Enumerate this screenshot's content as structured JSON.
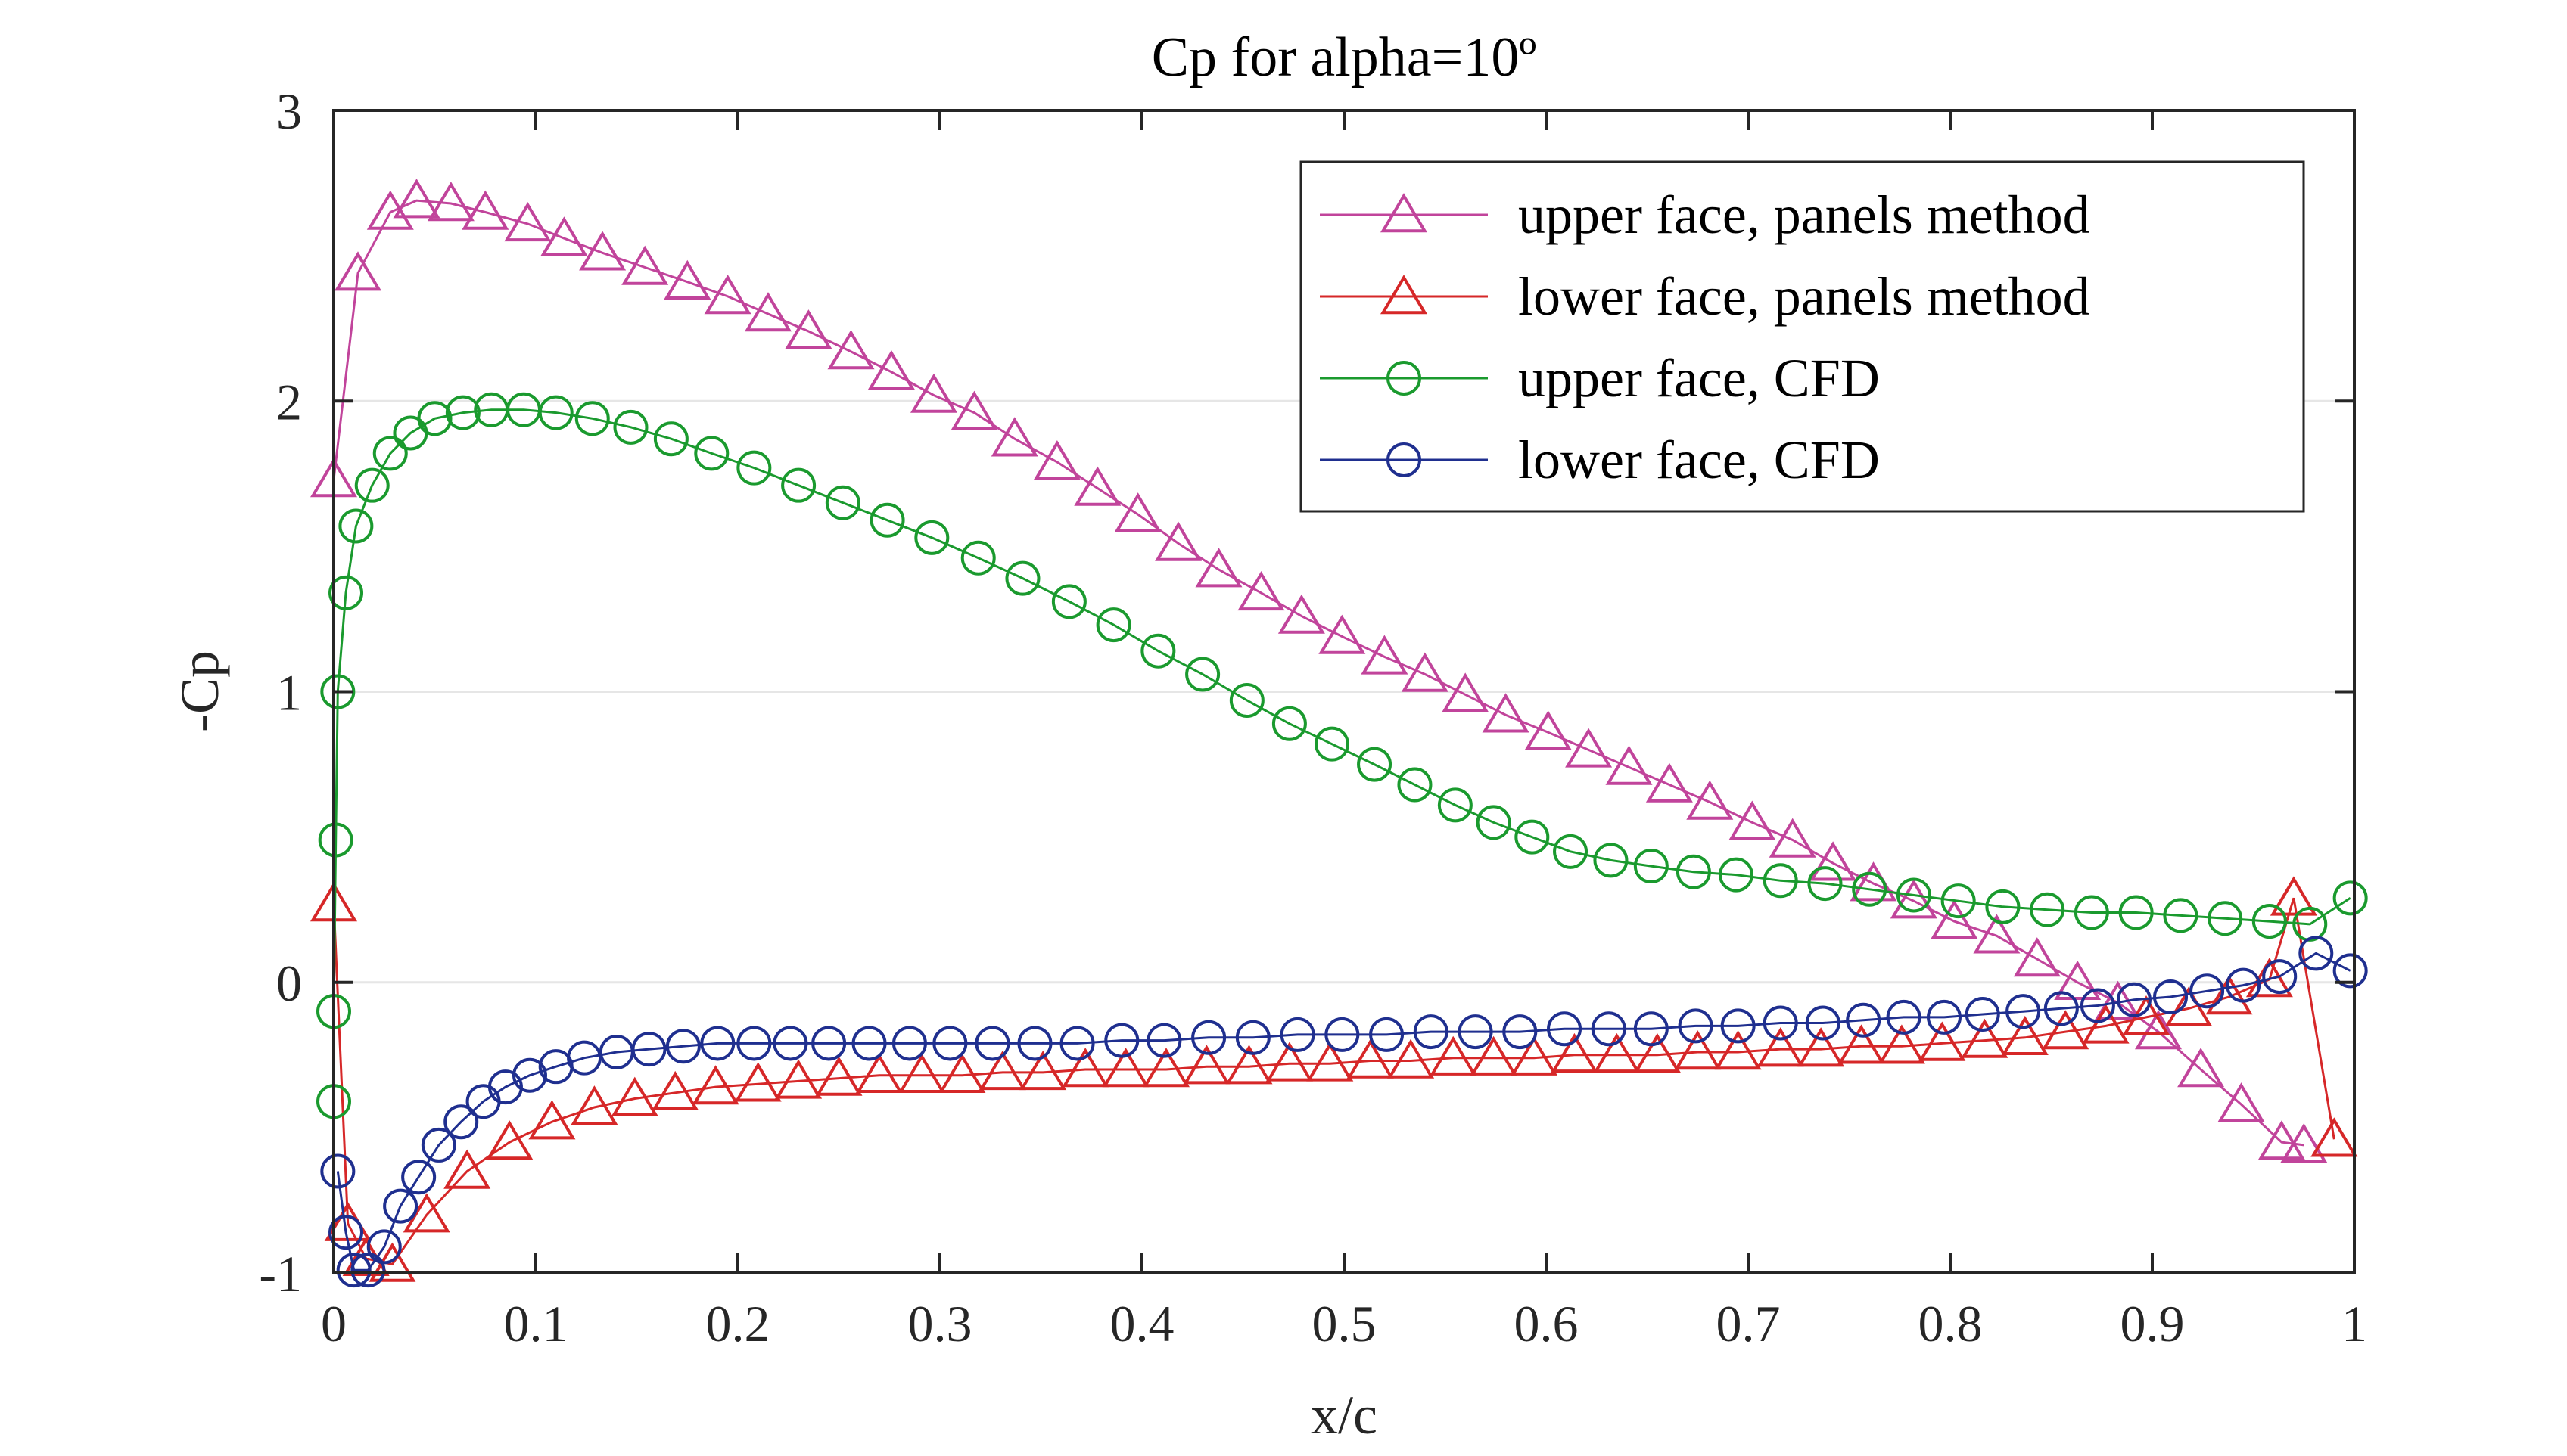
{
  "chart_data": {
    "type": "line",
    "title": "Cp for alpha=10º",
    "xlabel": "x/c",
    "ylabel": "-Cp",
    "xlim": [
      0,
      1
    ],
    "ylim": [
      -1,
      3
    ],
    "xticks": [
      "0",
      "0.1",
      "0.2",
      "0.3",
      "0.4",
      "0.5",
      "0.6",
      "0.7",
      "0.8",
      "0.9",
      "1"
    ],
    "yticks": [
      "-1",
      "0",
      "1",
      "2",
      "3"
    ],
    "grid": "horizontal",
    "legend_position": "top-right",
    "series": [
      {
        "name": "upper face, panels method",
        "color": "#C1449B",
        "marker": "triangle",
        "x": [
          0.0,
          0.012,
          0.028,
          0.041,
          0.058,
          0.075,
          0.096,
          0.114,
          0.133,
          0.154,
          0.175,
          0.195,
          0.215,
          0.235,
          0.256,
          0.276,
          0.297,
          0.317,
          0.337,
          0.358,
          0.378,
          0.398,
          0.418,
          0.438,
          0.459,
          0.479,
          0.499,
          0.52,
          0.54,
          0.56,
          0.58,
          0.601,
          0.621,
          0.641,
          0.661,
          0.681,
          0.702,
          0.722,
          0.742,
          0.762,
          0.782,
          0.802,
          0.823,
          0.843,
          0.863,
          0.883,
          0.903,
          0.924,
          0.944,
          0.964,
          0.975
        ],
        "y": [
          1.73,
          2.44,
          2.65,
          2.69,
          2.68,
          2.65,
          2.61,
          2.56,
          2.51,
          2.46,
          2.41,
          2.36,
          2.3,
          2.24,
          2.17,
          2.1,
          2.02,
          1.96,
          1.87,
          1.79,
          1.7,
          1.61,
          1.51,
          1.42,
          1.34,
          1.26,
          1.19,
          1.12,
          1.06,
          0.99,
          0.92,
          0.86,
          0.8,
          0.74,
          0.68,
          0.62,
          0.55,
          0.49,
          0.41,
          0.34,
          0.28,
          0.21,
          0.16,
          0.08,
          0.0,
          -0.07,
          -0.17,
          -0.3,
          -0.42,
          -0.55,
          -0.56
        ]
      },
      {
        "name": "lower face, panels method",
        "color": "#D62728",
        "marker": "triangle",
        "x": [
          0.0,
          0.007,
          0.016,
          0.029,
          0.046,
          0.066,
          0.087,
          0.108,
          0.129,
          0.149,
          0.169,
          0.189,
          0.21,
          0.23,
          0.25,
          0.27,
          0.291,
          0.311,
          0.331,
          0.351,
          0.372,
          0.392,
          0.412,
          0.432,
          0.453,
          0.473,
          0.493,
          0.513,
          0.533,
          0.554,
          0.574,
          0.594,
          0.614,
          0.635,
          0.655,
          0.675,
          0.695,
          0.716,
          0.736,
          0.756,
          0.776,
          0.796,
          0.817,
          0.837,
          0.857,
          0.877,
          0.897,
          0.918,
          0.938,
          0.958,
          0.97,
          0.99
        ],
        "y": [
          0.27,
          -0.83,
          -0.95,
          -0.97,
          -0.8,
          -0.65,
          -0.55,
          -0.48,
          -0.43,
          -0.4,
          -0.38,
          -0.36,
          -0.35,
          -0.34,
          -0.33,
          -0.32,
          -0.32,
          -0.32,
          -0.31,
          -0.31,
          -0.3,
          -0.3,
          -0.3,
          -0.29,
          -0.29,
          -0.28,
          -0.28,
          -0.27,
          -0.27,
          -0.26,
          -0.26,
          -0.26,
          -0.25,
          -0.25,
          -0.25,
          -0.24,
          -0.24,
          -0.23,
          -0.23,
          -0.22,
          -0.22,
          -0.21,
          -0.2,
          -0.19,
          -0.17,
          -0.15,
          -0.12,
          -0.09,
          -0.05,
          0.01,
          0.29,
          -0.54
        ]
      },
      {
        "name": "upper face, CFD",
        "color": "#1A9A2E",
        "marker": "circle",
        "x": [
          0.0,
          0.0,
          0.001,
          0.002,
          0.006,
          0.011,
          0.019,
          0.028,
          0.038,
          0.05,
          0.064,
          0.078,
          0.094,
          0.11,
          0.128,
          0.147,
          0.167,
          0.187,
          0.208,
          0.23,
          0.252,
          0.274,
          0.296,
          0.319,
          0.341,
          0.364,
          0.386,
          0.408,
          0.43,
          0.452,
          0.473,
          0.494,
          0.515,
          0.535,
          0.555,
          0.574,
          0.593,
          0.612,
          0.632,
          0.652,
          0.673,
          0.694,
          0.716,
          0.738,
          0.76,
          0.782,
          0.804,
          0.826,
          0.848,
          0.87,
          0.892,
          0.914,
          0.936,
          0.958,
          0.978,
          0.998
        ],
        "y": [
          -0.41,
          -0.1,
          0.49,
          1.0,
          1.34,
          1.57,
          1.71,
          1.82,
          1.89,
          1.94,
          1.96,
          1.97,
          1.97,
          1.96,
          1.94,
          1.91,
          1.87,
          1.82,
          1.77,
          1.71,
          1.65,
          1.59,
          1.53,
          1.46,
          1.39,
          1.31,
          1.23,
          1.14,
          1.06,
          0.97,
          0.89,
          0.82,
          0.75,
          0.68,
          0.61,
          0.55,
          0.5,
          0.45,
          0.42,
          0.4,
          0.38,
          0.37,
          0.35,
          0.34,
          0.32,
          0.3,
          0.28,
          0.26,
          0.25,
          0.24,
          0.24,
          0.23,
          0.22,
          0.21,
          0.2,
          0.29
        ]
      },
      {
        "name": "lower face, CFD",
        "color": "#1F2F8F",
        "marker": "circle",
        "x": [
          0.002,
          0.006,
          0.01,
          0.017,
          0.025,
          0.033,
          0.042,
          0.052,
          0.063,
          0.074,
          0.085,
          0.097,
          0.11,
          0.124,
          0.14,
          0.156,
          0.173,
          0.19,
          0.208,
          0.226,
          0.245,
          0.265,
          0.285,
          0.305,
          0.326,
          0.347,
          0.368,
          0.39,
          0.411,
          0.433,
          0.455,
          0.477,
          0.499,
          0.521,
          0.543,
          0.565,
          0.587,
          0.609,
          0.631,
          0.652,
          0.674,
          0.695,
          0.716,
          0.737,
          0.757,
          0.777,
          0.797,
          0.816,
          0.836,
          0.855,
          0.873,
          0.891,
          0.909,
          0.927,
          0.945,
          0.963,
          0.981,
          0.998
        ],
        "y": [
          -0.65,
          -0.86,
          -0.99,
          -0.99,
          -0.91,
          -0.77,
          -0.67,
          -0.56,
          -0.48,
          -0.41,
          -0.36,
          -0.32,
          -0.29,
          -0.26,
          -0.24,
          -0.23,
          -0.22,
          -0.21,
          -0.21,
          -0.21,
          -0.21,
          -0.21,
          -0.21,
          -0.21,
          -0.21,
          -0.21,
          -0.21,
          -0.2,
          -0.2,
          -0.19,
          -0.19,
          -0.18,
          -0.18,
          -0.18,
          -0.17,
          -0.17,
          -0.17,
          -0.16,
          -0.16,
          -0.16,
          -0.15,
          -0.15,
          -0.14,
          -0.14,
          -0.13,
          -0.12,
          -0.12,
          -0.11,
          -0.1,
          -0.09,
          -0.08,
          -0.06,
          -0.05,
          -0.03,
          -0.01,
          0.02,
          0.1,
          0.04
        ]
      }
    ]
  }
}
